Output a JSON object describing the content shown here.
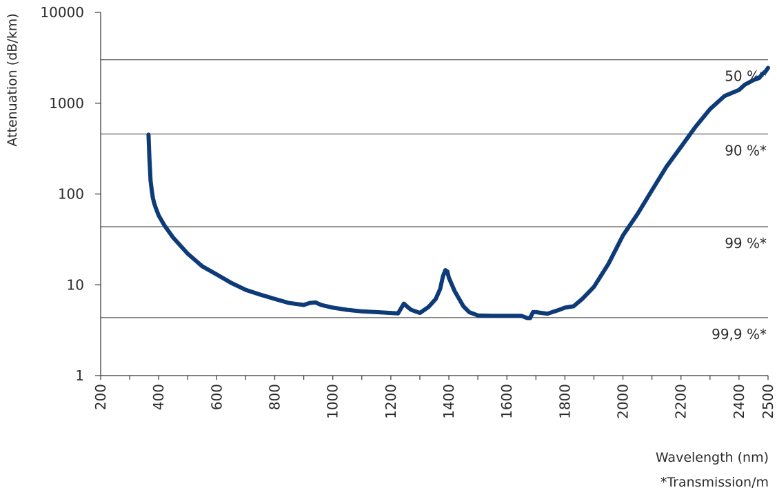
{
  "chart_data": {
    "type": "line",
    "title": "",
    "xlabel": "Wavelength (nm)",
    "ylabel": "Attenuation (dB/km)",
    "note": "*Transmission/m",
    "xlim": [
      200,
      2500
    ],
    "ylim": [
      1,
      10000
    ],
    "y_scale": "log",
    "grid": false,
    "line_color": "#0d3b78",
    "x_ticks": [
      200,
      400,
      600,
      800,
      1000,
      1200,
      1400,
      1600,
      1800,
      2000,
      2200,
      2400,
      2500
    ],
    "x_tick_labels": [
      "200",
      "400",
      "600",
      "800",
      "1000",
      "1200",
      "1400",
      "1600",
      "1800",
      "2000",
      "2200",
      "2400",
      "2500"
    ],
    "x_minor_step": 100,
    "y_ticks": [
      1,
      10,
      100,
      1000,
      10000
    ],
    "y_tick_labels": [
      "1",
      "10",
      "100",
      "1000",
      "10000"
    ],
    "reference_lines": [
      {
        "label": "50 %*",
        "value": 3010
      },
      {
        "label": "90 %*",
        "value": 458
      },
      {
        "label": "99 %*",
        "value": 43.6
      },
      {
        "label": "99,9 %*",
        "value": 4.35
      }
    ],
    "series": [
      {
        "x": [
          365,
          368,
          372,
          376,
          380,
          385,
          390,
          400,
          420,
          450,
          500,
          550,
          600,
          650,
          700,
          750,
          800,
          850,
          900,
          920,
          940,
          960,
          1000,
          1050,
          1100,
          1150,
          1200,
          1225,
          1235,
          1245,
          1255,
          1270,
          1300,
          1330,
          1355,
          1370,
          1380,
          1388,
          1395,
          1400,
          1420,
          1450,
          1470,
          1500,
          1550,
          1600,
          1650,
          1670,
          1680,
          1690,
          1700,
          1720,
          1740,
          1780,
          1800,
          1830,
          1860,
          1900,
          1950,
          2000,
          2050,
          2100,
          2150,
          2200,
          2250,
          2300,
          2350,
          2400,
          2420,
          2450,
          2470,
          2480,
          2490,
          2500
        ],
        "y": [
          450,
          250,
          140,
          110,
          90,
          78,
          70,
          58,
          45,
          33,
          22,
          16,
          13,
          10.5,
          8.8,
          7.8,
          7.0,
          6.3,
          6.0,
          6.3,
          6.4,
          6.0,
          5.6,
          5.3,
          5.1,
          5.0,
          4.9,
          4.85,
          5.5,
          6.2,
          5.8,
          5.3,
          4.9,
          5.7,
          7.0,
          9.0,
          12.5,
          14.5,
          14.0,
          12.0,
          8.5,
          5.8,
          5.0,
          4.6,
          4.55,
          4.55,
          4.55,
          4.3,
          4.3,
          5.0,
          5.0,
          4.9,
          4.8,
          5.3,
          5.6,
          5.8,
          7.0,
          9.5,
          17,
          35,
          60,
          110,
          200,
          330,
          550,
          860,
          1200,
          1400,
          1600,
          1800,
          1900,
          2100,
          2200,
          2450
        ]
      }
    ]
  }
}
